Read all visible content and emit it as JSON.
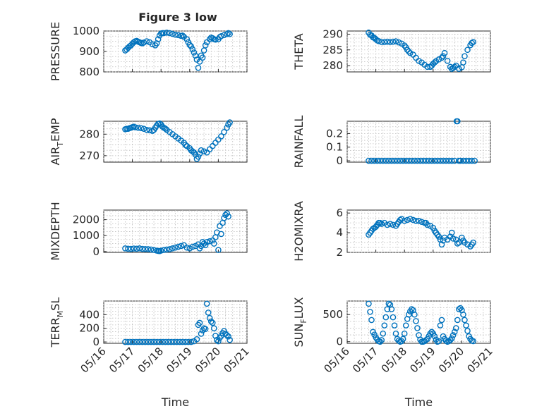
{
  "figure": {
    "title": "Figure 3 low",
    "marker_color": "#0072bd"
  },
  "chart_data": [
    {
      "type": "scatter",
      "id": "pressure",
      "ylabel": "PRESSURE",
      "xlabel": "",
      "x_ticks": [
        "05/16",
        "05/17",
        "05/18",
        "05/19",
        "05/20",
        "05/21"
      ],
      "x_range_days": [
        0,
        5
      ],
      "ylim": [
        800,
        1000
      ],
      "y_ticks": [
        "800",
        "900",
        "1000"
      ],
      "y_tick_values": [
        800,
        900,
        1000
      ],
      "grid": true,
      "x": [
        0.75,
        0.8,
        0.85,
        0.9,
        0.95,
        1.0,
        1.05,
        1.1,
        1.15,
        1.2,
        1.25,
        1.3,
        1.35,
        1.4,
        1.5,
        1.6,
        1.7,
        1.8,
        1.85,
        1.9,
        1.95,
        2.0,
        2.05,
        2.1,
        2.2,
        2.3,
        2.4,
        2.5,
        2.6,
        2.7,
        2.75,
        2.8,
        2.9,
        2.95,
        3.0,
        3.05,
        3.1,
        3.15,
        3.2,
        3.25,
        3.3,
        3.35,
        3.4,
        3.45,
        3.5,
        3.55,
        3.6,
        3.7,
        3.75,
        3.8,
        3.85,
        3.9,
        4.0,
        4.05,
        4.1,
        4.2,
        4.3,
        4.35,
        4.4
      ],
      "y": [
        905,
        910,
        918,
        925,
        930,
        938,
        945,
        950,
        952,
        948,
        945,
        942,
        940,
        944,
        950,
        945,
        935,
        930,
        940,
        960,
        978,
        988,
        990,
        990,
        992,
        990,
        986,
        982,
        980,
        976,
        978,
        972,
        960,
        945,
        932,
        925,
        910,
        895,
        880,
        860,
        820,
        850,
        880,
        870,
        905,
        930,
        945,
        960,
        968,
        965,
        960,
        958,
        960,
        970,
        975,
        980,
        985,
        990,
        985
      ]
    },
    {
      "type": "scatter",
      "id": "theta",
      "ylabel": "THETA",
      "xlabel": "",
      "x_ticks": [
        "05/16",
        "05/17",
        "05/18",
        "05/19",
        "05/20",
        "05/21"
      ],
      "x_range_days": [
        0,
        5
      ],
      "ylim": [
        278,
        291
      ],
      "y_ticks": [
        "280",
        "285",
        "290"
      ],
      "y_tick_values": [
        280,
        285,
        290
      ],
      "grid": true,
      "x": [
        0.75,
        0.8,
        0.85,
        0.9,
        0.95,
        1.0,
        1.05,
        1.1,
        1.2,
        1.3,
        1.4,
        1.5,
        1.6,
        1.7,
        1.8,
        1.9,
        2.0,
        2.05,
        2.1,
        2.15,
        2.2,
        2.3,
        2.4,
        2.5,
        2.6,
        2.7,
        2.8,
        2.9,
        2.95,
        3.0,
        3.05,
        3.1,
        3.2,
        3.3,
        3.35,
        3.4,
        3.5,
        3.6,
        3.65,
        3.7,
        3.75,
        3.8,
        3.9,
        4.0,
        4.05,
        4.1,
        4.2,
        4.3,
        4.35,
        4.4
      ],
      "y": [
        290.5,
        289.8,
        289.6,
        289.0,
        288.8,
        288.4,
        288.0,
        287.8,
        287.5,
        287.5,
        287.6,
        287.5,
        287.6,
        287.7,
        287.4,
        287.0,
        286.4,
        285.8,
        285.0,
        284.5,
        284.0,
        283.5,
        282.5,
        281.5,
        281.0,
        280.3,
        279.6,
        279.6,
        280.0,
        280.6,
        281.0,
        281.4,
        282.0,
        282.5,
        283.0,
        284.0,
        281.5,
        279.6,
        279.0,
        279.3,
        279.6,
        280.0,
        279.0,
        279.5,
        281.0,
        283.0,
        285.0,
        286.5,
        287.2,
        287.5
      ]
    },
    {
      "type": "scatter",
      "id": "air_temp",
      "ylabel": "AIR_TEMP",
      "ylabel_parts": {
        "pre": "AIR",
        "sub": "T",
        "post": "EMP"
      },
      "xlabel": "",
      "x_ticks": [
        "05/16",
        "05/17",
        "05/18",
        "05/19",
        "05/20",
        "05/21"
      ],
      "x_range_days": [
        0,
        5
      ],
      "ylim": [
        267,
        286
      ],
      "y_ticks": [
        "270",
        "280"
      ],
      "y_tick_values": [
        270,
        280
      ],
      "grid": true,
      "x": [
        0.75,
        0.8,
        0.85,
        0.9,
        0.95,
        1.0,
        1.05,
        1.1,
        1.2,
        1.3,
        1.4,
        1.5,
        1.6,
        1.7,
        1.75,
        1.8,
        1.85,
        1.9,
        1.95,
        2.0,
        2.05,
        2.1,
        2.15,
        2.2,
        2.3,
        2.4,
        2.5,
        2.6,
        2.7,
        2.8,
        2.85,
        2.9,
        3.0,
        3.05,
        3.1,
        3.15,
        3.2,
        3.25,
        3.3,
        3.35,
        3.4,
        3.5,
        3.6,
        3.7,
        3.8,
        3.9,
        4.0,
        4.1,
        4.2,
        4.3,
        4.35,
        4.4
      ],
      "y": [
        282.3,
        282.5,
        282.5,
        282.8,
        283.0,
        283.3,
        283.5,
        283.2,
        283.0,
        282.8,
        282.5,
        282.0,
        281.8,
        281.5,
        282.0,
        283.0,
        284.0,
        284.8,
        285.0,
        284.5,
        283.5,
        283.0,
        282.6,
        282.0,
        281.0,
        280.0,
        279.0,
        278.0,
        277.0,
        276.0,
        275.0,
        274.5,
        273.5,
        272.5,
        272.0,
        271.5,
        270.5,
        268.5,
        269.5,
        271.0,
        272.5,
        272.0,
        271.5,
        273.0,
        274.5,
        276.0,
        277.5,
        279.0,
        281.0,
        283.0,
        284.5,
        285.5
      ]
    },
    {
      "type": "scatter",
      "id": "rainfall",
      "ylabel": "RAINFALL",
      "xlabel": "",
      "x_ticks": [
        "05/16",
        "05/17",
        "05/18",
        "05/19",
        "05/20",
        "05/21"
      ],
      "x_range_days": [
        0,
        5
      ],
      "ylim": [
        -0.01,
        0.29
      ],
      "y_ticks": [
        "0",
        "0.1",
        "0.2"
      ],
      "y_tick_values": [
        0,
        0.1,
        0.2
      ],
      "grid": true,
      "x": [
        0.75,
        0.85,
        0.95,
        1.05,
        1.15,
        1.25,
        1.35,
        1.45,
        1.55,
        1.65,
        1.75,
        1.85,
        1.95,
        2.05,
        2.15,
        2.25,
        2.35,
        2.45,
        2.55,
        2.65,
        2.75,
        2.85,
        2.95,
        3.05,
        3.15,
        3.25,
        3.35,
        3.45,
        3.55,
        3.65,
        3.75,
        3.82,
        3.85,
        3.9,
        3.95,
        4.05,
        4.15,
        4.25,
        4.35,
        4.45
      ],
      "y": [
        0,
        0,
        0,
        0,
        0,
        0,
        0,
        0,
        0,
        0,
        0,
        0,
        0,
        0,
        0,
        0,
        0,
        0,
        0,
        0,
        0,
        0,
        0,
        0,
        0,
        0,
        0,
        0,
        0,
        0,
        0,
        0.29,
        0.29,
        0,
        0,
        0,
        0,
        0,
        0,
        0
      ]
    },
    {
      "type": "scatter",
      "id": "mixdepth",
      "ylabel": "MIXDEPTH",
      "xlabel": "",
      "x_ticks": [
        "05/16",
        "05/17",
        "05/18",
        "05/19",
        "05/20",
        "05/21"
      ],
      "x_range_days": [
        0,
        5
      ],
      "ylim": [
        -50,
        2600
      ],
      "y_ticks": [
        "0",
        "1000",
        "2000"
      ],
      "y_tick_values": [
        0,
        1000,
        2000
      ],
      "grid": true,
      "x": [
        0.75,
        0.85,
        0.95,
        1.05,
        1.15,
        1.25,
        1.35,
        1.45,
        1.55,
        1.65,
        1.75,
        1.85,
        1.9,
        1.95,
        2.0,
        2.1,
        2.2,
        2.3,
        2.4,
        2.5,
        2.6,
        2.7,
        2.8,
        2.9,
        3.0,
        3.1,
        3.2,
        3.3,
        3.35,
        3.4,
        3.45,
        3.5,
        3.55,
        3.6,
        3.7,
        3.8,
        3.85,
        3.9,
        3.95,
        4.0,
        4.05,
        4.1,
        4.15,
        4.2,
        4.25,
        4.3,
        4.35
      ],
      "y": [
        200,
        180,
        170,
        190,
        180,
        200,
        170,
        160,
        150,
        130,
        100,
        60,
        40,
        30,
        60,
        100,
        130,
        150,
        200,
        250,
        300,
        350,
        400,
        250,
        200,
        300,
        350,
        450,
        200,
        350,
        600,
        500,
        400,
        600,
        650,
        700,
        500,
        900,
        1200,
        100,
        1600,
        1100,
        1800,
        2100,
        2300,
        2400,
        2200
      ]
    },
    {
      "type": "scatter",
      "id": "h2omixra",
      "ylabel": "H2OMIXRA",
      "xlabel": "",
      "x_ticks": [
        "05/16",
        "05/17",
        "05/18",
        "05/19",
        "05/20",
        "05/21"
      ],
      "x_range_days": [
        0,
        5
      ],
      "ylim": [
        2,
        6.3
      ],
      "y_ticks": [
        "2",
        "4",
        "6"
      ],
      "y_tick_values": [
        2,
        4,
        6
      ],
      "grid": true,
      "x": [
        0.75,
        0.8,
        0.85,
        0.9,
        0.95,
        1.0,
        1.05,
        1.1,
        1.15,
        1.2,
        1.3,
        1.4,
        1.5,
        1.6,
        1.7,
        1.75,
        1.8,
        1.85,
        1.9,
        2.0,
        2.1,
        2.2,
        2.3,
        2.4,
        2.5,
        2.6,
        2.7,
        2.75,
        2.8,
        2.9,
        3.0,
        3.05,
        3.1,
        3.15,
        3.2,
        3.25,
        3.3,
        3.35,
        3.4,
        3.5,
        3.6,
        3.65,
        3.7,
        3.8,
        3.85,
        3.9,
        4.0,
        4.05,
        4.1,
        4.2,
        4.3,
        4.35,
        4.4
      ],
      "y": [
        3.8,
        4.0,
        4.2,
        4.4,
        4.5,
        4.6,
        4.8,
        5.0,
        5.0,
        4.9,
        5.0,
        4.8,
        4.9,
        4.8,
        4.7,
        4.9,
        5.1,
        5.3,
        5.4,
        5.2,
        5.3,
        5.4,
        5.3,
        5.2,
        5.2,
        5.1,
        5.0,
        5.0,
        4.8,
        4.7,
        4.5,
        4.2,
        4.0,
        3.8,
        3.6,
        3.3,
        2.8,
        3.2,
        3.5,
        3.3,
        3.6,
        4.0,
        3.4,
        3.3,
        2.9,
        3.0,
        3.5,
        3.2,
        3.0,
        2.8,
        2.6,
        2.8,
        3.0
      ]
    },
    {
      "type": "scatter",
      "id": "terr_msl",
      "ylabel": "TERR_MSL",
      "ylabel_parts": {
        "pre": "TERR",
        "sub": "M",
        "post": "SL"
      },
      "xlabel": "Time",
      "x_ticks": [
        "05/16",
        "05/17",
        "05/18",
        "05/19",
        "05/20",
        "05/21"
      ],
      "x_range_days": [
        0,
        5
      ],
      "ylim": [
        -20,
        600
      ],
      "y_ticks": [
        "0",
        "200",
        "400"
      ],
      "y_tick_values": [
        0,
        200,
        400
      ],
      "grid": true,
      "x": [
        0.75,
        0.85,
        0.95,
        1.05,
        1.15,
        1.25,
        1.35,
        1.45,
        1.55,
        1.65,
        1.75,
        1.85,
        1.95,
        2.05,
        2.15,
        2.25,
        2.35,
        2.45,
        2.55,
        2.65,
        2.75,
        2.85,
        2.95,
        3.05,
        3.15,
        3.25,
        3.3,
        3.35,
        3.4,
        3.45,
        3.5,
        3.55,
        3.6,
        3.65,
        3.7,
        3.75,
        3.8,
        3.85,
        3.9,
        3.95,
        4.0,
        4.05,
        4.1,
        4.15,
        4.2,
        4.25,
        4.3,
        4.35,
        4.4
      ],
      "y": [
        0,
        0,
        0,
        0,
        0,
        0,
        0,
        0,
        0,
        0,
        0,
        0,
        0,
        0,
        0,
        0,
        0,
        0,
        0,
        0,
        0,
        0,
        0,
        0,
        10,
        40,
        250,
        280,
        120,
        170,
        200,
        190,
        560,
        430,
        350,
        300,
        280,
        200,
        90,
        30,
        10,
        60,
        90,
        130,
        160,
        120,
        100,
        80,
        30
      ]
    },
    {
      "type": "scatter",
      "id": "sun_flux",
      "ylabel": "SUN_FLUX",
      "ylabel_parts": {
        "pre": "SUN",
        "sub": "F",
        "post": "LUX"
      },
      "xlabel": "Time",
      "x_ticks": [
        "05/16",
        "05/17",
        "05/18",
        "05/19",
        "05/20",
        "05/21"
      ],
      "x_range_days": [
        0,
        5
      ],
      "ylim": [
        -30,
        750
      ],
      "y_ticks": [
        "0",
        "500"
      ],
      "y_tick_values": [
        0,
        500
      ],
      "grid": true,
      "x": [
        0.75,
        0.8,
        0.85,
        0.9,
        0.95,
        1.0,
        1.05,
        1.1,
        1.15,
        1.2,
        1.25,
        1.3,
        1.35,
        1.4,
        1.45,
        1.5,
        1.55,
        1.6,
        1.65,
        1.7,
        1.75,
        1.8,
        1.85,
        1.9,
        1.95,
        2.0,
        2.05,
        2.1,
        2.15,
        2.2,
        2.25,
        2.3,
        2.35,
        2.4,
        2.45,
        2.5,
        2.55,
        2.6,
        2.65,
        2.7,
        2.75,
        2.8,
        2.85,
        2.9,
        2.95,
        3.0,
        3.05,
        3.1,
        3.15,
        3.2,
        3.25,
        3.3,
        3.35,
        3.4,
        3.45,
        3.5,
        3.55,
        3.6,
        3.65,
        3.7,
        3.75,
        3.8,
        3.85,
        3.9,
        3.95,
        4.0,
        4.05,
        4.1,
        4.15,
        4.2,
        4.25,
        4.3,
        4.35,
        4.4
      ],
      "y": [
        700,
        550,
        400,
        180,
        130,
        80,
        40,
        10,
        0,
        30,
        150,
        300,
        450,
        600,
        700,
        680,
        600,
        450,
        300,
        150,
        50,
        20,
        0,
        10,
        50,
        150,
        300,
        420,
        500,
        560,
        600,
        580,
        500,
        380,
        250,
        120,
        40,
        0,
        0,
        10,
        30,
        50,
        100,
        150,
        180,
        150,
        100,
        40,
        0,
        10,
        300,
        400,
        100,
        50,
        20,
        0,
        10,
        30,
        60,
        120,
        180,
        250,
        400,
        600,
        620,
        580,
        500,
        400,
        300,
        200,
        100,
        50,
        20,
        10
      ]
    }
  ]
}
